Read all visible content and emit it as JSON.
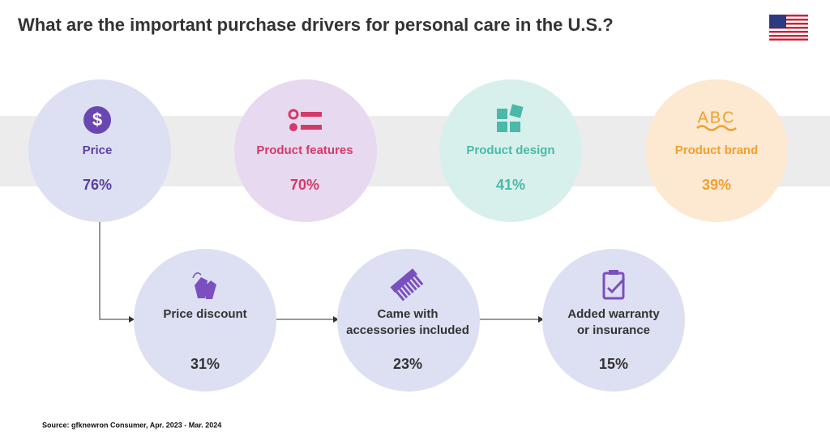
{
  "header": {
    "title": "What are the important purchase drivers for personal care in the U.S.?"
  },
  "top_nodes": [
    {
      "label": "Price",
      "value": "76%"
    },
    {
      "label": "Product features",
      "value": "70%"
    },
    {
      "label": "Product design",
      "value": "41%"
    },
    {
      "label": "Product brand",
      "value": "39%"
    }
  ],
  "bottom_nodes": [
    {
      "lines": [
        "Price discount"
      ],
      "value": "31%"
    },
    {
      "lines": [
        "Came with",
        "accessories included"
      ],
      "value": "23%"
    },
    {
      "lines": [
        "Added warranty",
        "or insurance"
      ],
      "value": "15%"
    }
  ],
  "icon_text": "ABC",
  "footer": {
    "source": "Source: gfknewron Consumer, Apr. 2023 - Mar. 2024"
  }
}
